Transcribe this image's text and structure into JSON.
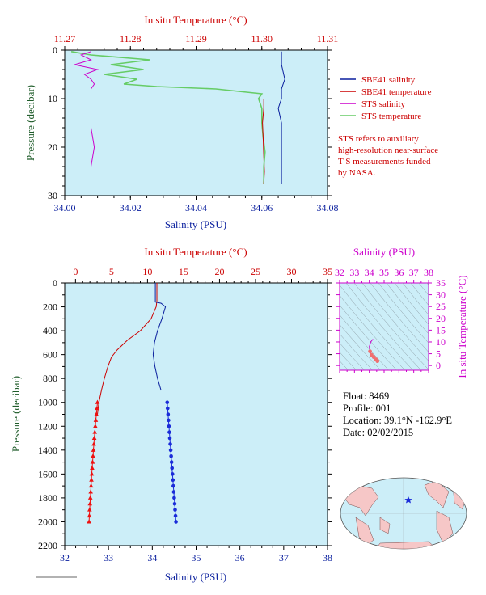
{
  "chart_data": [
    {
      "type": "line",
      "id": "near_surface",
      "top_axis": {
        "label": "In situ Temperature (°C)",
        "ticks": [
          "11.27",
          "11.28",
          "11.29",
          "11.30",
          "11.31"
        ],
        "range": [
          11.27,
          11.31
        ]
      },
      "bottom_axis": {
        "label": "Salinity (PSU)",
        "ticks": [
          "34.00",
          "34.02",
          "34.04",
          "34.06",
          "34.08"
        ],
        "range": [
          34.0,
          34.08
        ]
      },
      "left_axis": {
        "label": "Pressure (decibar)",
        "ticks": [
          "0",
          "10",
          "20",
          "30"
        ],
        "range": [
          0,
          30
        ],
        "inverted": true
      },
      "legend": [
        {
          "name": "SBE41 salinity",
          "color": "#0a1f9e"
        },
        {
          "name": "SBE41 temperature",
          "color": "#cc0000"
        },
        {
          "name": "STS salinity",
          "color": "#cc00cc"
        },
        {
          "name": "STS temperature",
          "color": "#66cc66"
        }
      ],
      "note": [
        "STS refers to auxiliary",
        "high-resolution near-surface",
        "T-S measurements funded",
        "by NASA."
      ],
      "series": [
        {
          "name": "SBE41 salinity",
          "axis": "salinity",
          "color": "#0a1f9e",
          "x": [
            34.066,
            34.066,
            34.067,
            34.066,
            34.066,
            34.065,
            34.066,
            34.066,
            34.066,
            34.066,
            34.066,
            34.066
          ],
          "y": [
            0.3,
            3,
            6,
            8,
            10,
            12,
            15,
            18,
            21,
            24,
            26,
            27.5
          ]
        },
        {
          "name": "SBE41 temperature",
          "axis": "temperature",
          "color": "#cc0000",
          "x": [
            11.3003,
            11.3003,
            11.3001,
            11.3002,
            11.3003,
            11.3004,
            11.3003
          ],
          "y": [
            10,
            12,
            15,
            18,
            22,
            25,
            27.5
          ]
        },
        {
          "name": "STS salinity",
          "axis": "salinity",
          "color": "#cc00cc",
          "x": [
            34.008,
            34.005,
            34.008,
            34.003,
            34.01,
            34.006,
            34.008,
            34.009,
            34.008,
            34.008,
            34.008,
            34.008,
            34.008,
            34.009,
            34.008,
            34.008
          ],
          "y": [
            0.3,
            1,
            2,
            3,
            4,
            5,
            6,
            7,
            8,
            9,
            10,
            13,
            16,
            20,
            24,
            27.5
          ]
        },
        {
          "name": "STS temperature",
          "axis": "temperature",
          "color": "#66cc66",
          "x": [
            11.271,
            11.274,
            11.283,
            11.277,
            11.282,
            11.276,
            11.281,
            11.279,
            11.284,
            11.293,
            11.3,
            11.2995,
            11.3,
            11.3,
            11.3002,
            11.3005,
            11.3003,
            11.3003
          ],
          "y": [
            0.3,
            1,
            2,
            3,
            4,
            5,
            6,
            7,
            7.5,
            8,
            9,
            10,
            12,
            15,
            18,
            21,
            24,
            27.5
          ]
        }
      ]
    },
    {
      "type": "line",
      "id": "full_profile",
      "top_axis": {
        "label": "In situ Temperature (°C)",
        "ticks": [
          "0",
          "5",
          "10",
          "15",
          "20",
          "25",
          "30",
          "35"
        ],
        "range": [
          -1.5,
          35
        ]
      },
      "bottom_axis": {
        "label": "Salinity (PSU)",
        "ticks": [
          "32",
          "33",
          "34",
          "35",
          "36",
          "37",
          "38"
        ],
        "range": [
          32,
          38
        ]
      },
      "left_axis": {
        "label": "Pressure (decibar)",
        "ticks": [
          "0",
          "200",
          "400",
          "600",
          "800",
          "1000",
          "1200",
          "1400",
          "1600",
          "1800",
          "2000",
          "2200"
        ],
        "range": [
          0,
          2200
        ],
        "inverted": true
      },
      "series": [
        {
          "name": "temperature",
          "axis": "temperature",
          "color": "#cc0000",
          "x": [
            11.3,
            11.3,
            11.2,
            10.5,
            9.0,
            7.2,
            5.8,
            5.0,
            4.5,
            4.0,
            3.6,
            3.25,
            3.05
          ],
          "y": [
            0,
            150,
            200,
            300,
            400,
            480,
            560,
            620,
            700,
            800,
            900,
            1000,
            1100
          ]
        },
        {
          "name": "salinity",
          "axis": "salinity",
          "color": "#0a1f9e",
          "x": [
            34.07,
            34.07,
            34.07,
            34.2,
            34.3,
            34.22,
            34.12,
            34.05,
            34.02,
            34.06,
            34.12,
            34.2
          ],
          "y": [
            0,
            150,
            160,
            170,
            200,
            300,
            400,
            500,
            600,
            700,
            800,
            900
          ]
        },
        {
          "name": "temperature samples",
          "axis": "temperature",
          "color": "#ee1111",
          "marker": "triangle",
          "x": [
            3.05,
            2.98,
            2.9,
            2.82,
            2.75,
            2.68,
            2.61,
            2.55,
            2.49,
            2.43,
            2.37,
            2.31,
            2.26,
            2.21,
            2.16,
            2.11,
            2.06,
            2.01,
            1.96,
            1.92,
            1.88
          ],
          "y": [
            1000,
            1050,
            1100,
            1150,
            1200,
            1250,
            1300,
            1350,
            1400,
            1450,
            1500,
            1550,
            1600,
            1650,
            1700,
            1750,
            1800,
            1850,
            1900,
            1950,
            2000
          ]
        },
        {
          "name": "salinity samples",
          "axis": "salinity",
          "color": "#1a2bd9",
          "marker": "dot",
          "x": [
            34.34,
            34.35,
            34.36,
            34.37,
            34.38,
            34.39,
            34.4,
            34.41,
            34.42,
            34.43,
            34.44,
            34.45,
            34.46,
            34.47,
            34.48,
            34.49,
            34.5,
            34.51,
            34.52,
            34.53,
            34.54
          ],
          "y": [
            1000,
            1050,
            1100,
            1150,
            1200,
            1250,
            1300,
            1350,
            1400,
            1450,
            1500,
            1550,
            1600,
            1650,
            1700,
            1750,
            1800,
            1850,
            1900,
            1950,
            2000
          ]
        }
      ]
    },
    {
      "type": "scatter",
      "id": "ts_diagram",
      "top_axis": {
        "label": "Salinity (PSU)",
        "ticks": [
          "32",
          "33",
          "34",
          "35",
          "36",
          "37",
          "38"
        ],
        "range": [
          32,
          38
        ]
      },
      "right_axis": {
        "label": "In situ Temperature (°C)",
        "ticks": [
          "0",
          "5",
          "10",
          "15",
          "20",
          "25",
          "30",
          "35"
        ],
        "range": [
          -2,
          35
        ]
      },
      "series": [
        {
          "name": "T-S curve",
          "color": "#cc00cc",
          "x": [
            34.25,
            34.1,
            34.0,
            34.05,
            34.15,
            34.3,
            34.45,
            34.55
          ],
          "y": [
            11.2,
            10.0,
            8.0,
            6.0,
            4.5,
            3.6,
            2.6,
            1.9
          ]
        }
      ]
    }
  ],
  "float_info": {
    "float": "Float: 8469",
    "profile": "Profile: 001",
    "location": "Location: 39.1°N -162.9°E",
    "date": "Date: 02/02/2015"
  }
}
